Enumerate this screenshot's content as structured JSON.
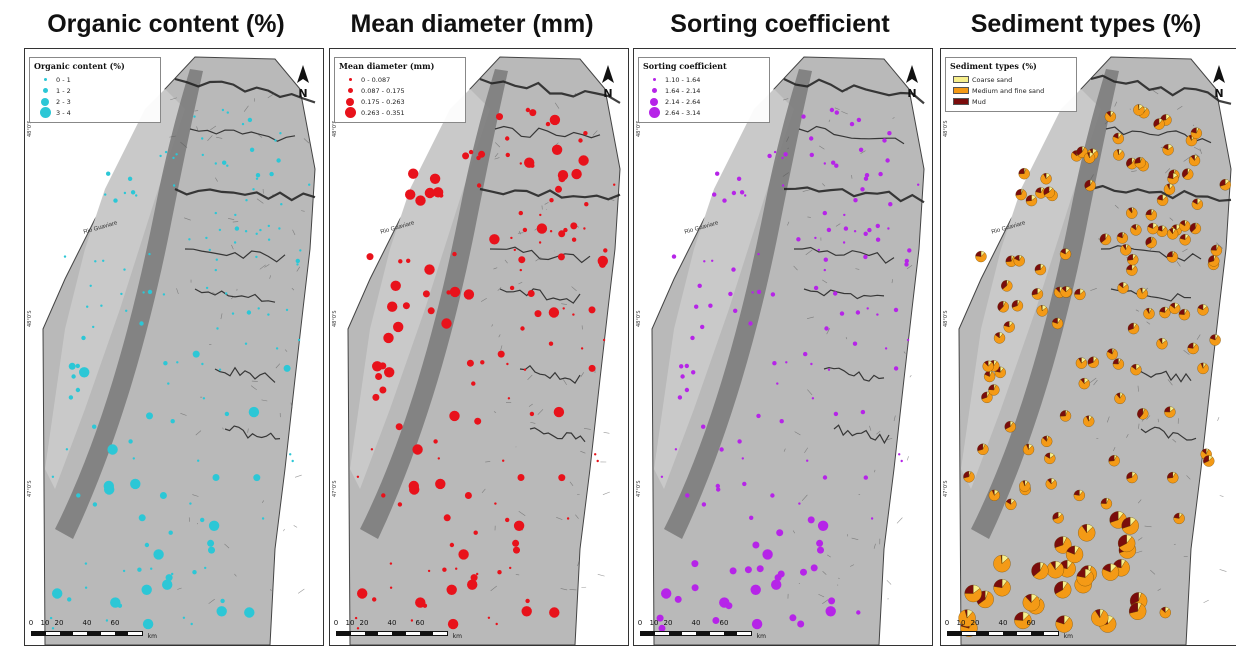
{
  "panels": [
    {
      "title": "Organic content (%)",
      "legend_title": "Organic content (%)",
      "symbol_color": "#2cc7d6",
      "legend_items": [
        "0 - 1",
        "1 - 2",
        "2 - 3",
        "3 - 4"
      ],
      "symbol_type": "graduated-circle"
    },
    {
      "title": "Mean diameter (mm)",
      "legend_title": "Mean diameter (mm)",
      "symbol_color": "#e8121b",
      "legend_items": [
        "0 - 0.087",
        "0.087 - 0.175",
        "0.175 - 0.263",
        "0.263 - 0.351"
      ],
      "symbol_type": "graduated-circle"
    },
    {
      "title": "Sorting coefficient",
      "legend_title": "Sorting coefficient",
      "symbol_color": "#b624e8",
      "legend_items": [
        "1.10 - 1.64",
        "1.64 - 2.14",
        "2.14 - 2.64",
        "2.64 - 3.14"
      ],
      "symbol_type": "graduated-circle"
    },
    {
      "title": "Sediment types (%)",
      "legend_title": "Sediment types (%)",
      "symbol_type": "pie",
      "legend_items": [
        "Coarse sand",
        "Medium and fine sand",
        "Mud"
      ],
      "legend_colors": [
        "#f7ef8c",
        "#f49a16",
        "#7a0c0c"
      ]
    }
  ],
  "map": {
    "river_label": "Rio Guaviare",
    "north_letter": "N",
    "latitudes": [
      "48°0'S",
      "48°0'S",
      "47°0'S"
    ],
    "scale_ticks": [
      "0",
      "10",
      "20",
      "40",
      "60"
    ],
    "scale_unit": "km",
    "colors": {
      "sea": "#ffffff",
      "shelf": "#b9b9b9",
      "channel": "#7d7d7d",
      "ridge": "#1e1e1e"
    }
  }
}
